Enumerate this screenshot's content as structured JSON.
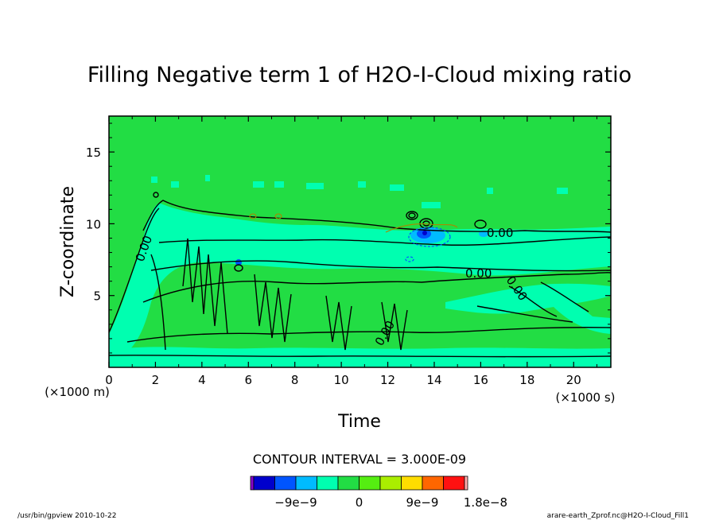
{
  "chart_data": {
    "type": "heatmap",
    "title": "Filling Negative term 1 of H2O-I-Cloud mixing ratio",
    "xlabel": "Time",
    "ylabel": "Z-coordinate",
    "x_unit": "(×1000 s)",
    "y_unit": "(×1000 m)",
    "xlim": [
      0,
      21.6
    ],
    "ylim": [
      0,
      17.5
    ],
    "x_ticks": [
      0,
      2,
      4,
      6,
      8,
      10,
      12,
      14,
      16,
      18,
      20
    ],
    "y_ticks": [
      5,
      10,
      15
    ],
    "contour_label": "0.00",
    "contour_interval_text": "CONTOUR INTERVAL = 3.000E-09",
    "colorbar": {
      "colors": [
        "#8800cc",
        "#0000cc",
        "#0055ff",
        "#00bbff",
        "#00ffb0",
        "#22dd44",
        "#55ee11",
        "#aaee00",
        "#ffdd00",
        "#ff6600",
        "#ff1111",
        "#ffaaaa"
      ],
      "tick_values": [
        -9e-09,
        0,
        9e-09,
        1.8e-08
      ],
      "tick_labels": [
        "−9e−9",
        "0",
        "9e−9",
        "1.8e−8"
      ]
    },
    "background_value_color": "#22dd44",
    "grid": false
  },
  "footer": {
    "left": "/usr/bin/gpview   2010-10-22",
    "right": "arare-earth_Zprof.nc@H2O-I-Cloud_Fill1"
  }
}
